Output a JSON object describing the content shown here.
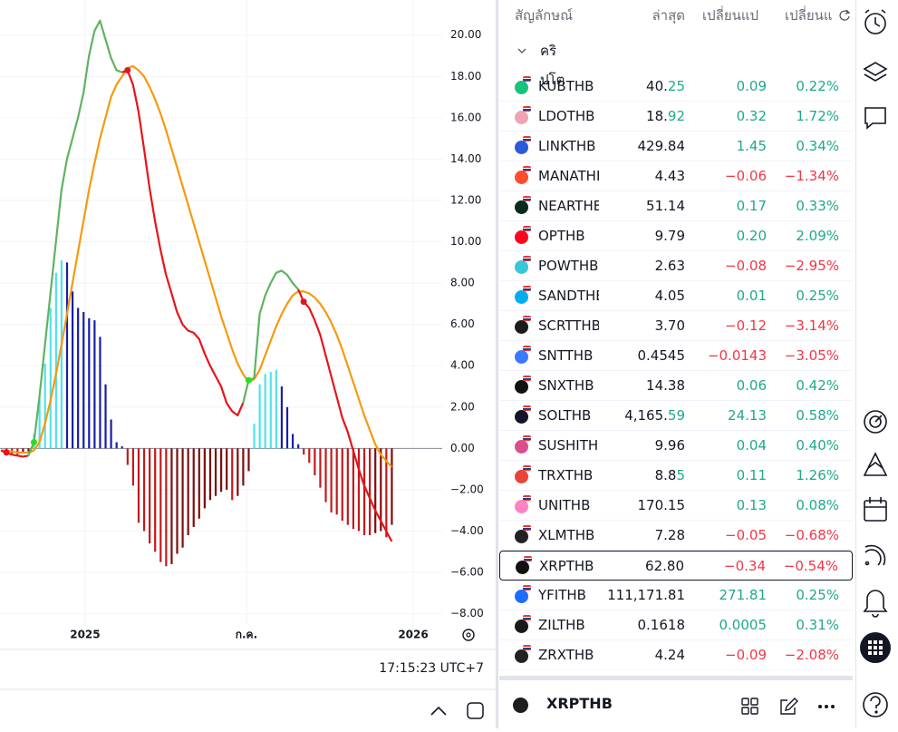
{
  "chart_data": {
    "type": "macd",
    "ylim": [
      -8.5,
      21.7
    ],
    "yticks": [
      {
        "value": -8,
        "label": "−8.00"
      },
      {
        "value": -6,
        "label": "−6.00"
      },
      {
        "value": -4,
        "label": "−4.00"
      },
      {
        "value": -2,
        "label": "−2.00"
      },
      {
        "value": 0,
        "label": "0.00"
      },
      {
        "value": 2,
        "label": "2.00"
      },
      {
        "value": 4,
        "label": "4.00"
      },
      {
        "value": 6,
        "label": "6.00"
      },
      {
        "value": 8,
        "label": "8.00"
      },
      {
        "value": 10,
        "label": "10.00"
      },
      {
        "value": 12,
        "label": "12.00"
      },
      {
        "value": 14,
        "label": "14.00"
      },
      {
        "value": 16,
        "label": "16.00"
      },
      {
        "value": 18,
        "label": "18.00"
      },
      {
        "value": 20,
        "label": "20.00"
      }
    ],
    "xlim": [
      0,
      80
    ],
    "xticks": [
      {
        "value": 15.3,
        "label": "2025"
      },
      {
        "value": 44.6,
        "label": "ก.ค."
      },
      {
        "value": 74.9,
        "label": "2026"
      }
    ],
    "grid": true,
    "macd": [
      -0.1,
      -0.2,
      -0.3,
      -0.35,
      -0.4,
      -0.35,
      0.3,
      2.5,
      5.0,
      7.5,
      10.0,
      12.5,
      14.0,
      15.0,
      16.0,
      17.2,
      19.0,
      20.2,
      20.7,
      19.8,
      18.9,
      18.3,
      18.2,
      18.3,
      17.6,
      16.3,
      14.5,
      12.6,
      11.0,
      9.6,
      8.4,
      7.5,
      6.6,
      6.0,
      5.7,
      5.6,
      5.3,
      4.6,
      4.0,
      3.5,
      3.0,
      2.2,
      1.8,
      1.6,
      2.2,
      3.3,
      3.4,
      6.5,
      7.4,
      8.0,
      8.5,
      8.6,
      8.4,
      8.0,
      7.7,
      7.1,
      6.8,
      6.2,
      5.5,
      4.5,
      3.5,
      2.5,
      1.5,
      0.8,
      -0.1,
      -1.0,
      -1.8,
      -2.4,
      -3.0,
      -3.5,
      -4.0,
      -4.5
    ],
    "signal": [
      -0.1,
      -0.1,
      -0.15,
      -0.2,
      -0.2,
      -0.2,
      -0.1,
      0.3,
      1.2,
      2.3,
      3.6,
      5.0,
      6.5,
      8.0,
      9.5,
      11.0,
      12.5,
      13.8,
      15.0,
      16.0,
      17.0,
      17.6,
      18.0,
      18.4,
      18.5,
      18.3,
      18.0,
      17.5,
      16.9,
      16.2,
      15.4,
      14.5,
      13.6,
      12.7,
      11.8,
      10.9,
      10.0,
      9.1,
      8.2,
      7.3,
      6.4,
      5.6,
      4.8,
      4.1,
      3.6,
      3.2,
      3.35,
      3.8,
      4.5,
      5.2,
      5.9,
      6.5,
      7.0,
      7.4,
      7.6,
      7.6,
      7.5,
      7.3,
      7.0,
      6.6,
      6.1,
      5.5,
      4.8,
      4.0,
      3.2,
      2.4,
      1.6,
      0.9,
      0.2,
      -0.3,
      -0.6,
      -0.9
    ],
    "histogram": [
      null,
      -0.2,
      -0.25,
      -0.3,
      -0.25,
      -0.15,
      0.7,
      2.4,
      4.1,
      6.8,
      8.5,
      9.1,
      9.0,
      7.6,
      6.8,
      6.6,
      6.3,
      6.2,
      5.4,
      3.1,
      1.4,
      0.3,
      0.1,
      -0.8,
      -1.8,
      -3.6,
      -4.0,
      -4.6,
      -5.0,
      -5.5,
      -5.7,
      -5.6,
      -5.1,
      -4.8,
      -4.2,
      -3.8,
      -3.4,
      -2.9,
      -2.5,
      -2.3,
      -2.1,
      -2.0,
      -2.5,
      -2.3,
      -1.8,
      -1.1,
      1.2,
      3.1,
      3.6,
      3.7,
      3.8,
      3.0,
      2.0,
      0.7,
      0.2,
      -0.3,
      -0.7,
      -1.3,
      -1.9,
      -2.6,
      -3.1,
      -3.2,
      -3.5,
      -3.7,
      -3.9,
      -4.0,
      -4.2,
      -4.2,
      -4.1,
      -4.0,
      -4.3,
      -3.7
    ],
    "colors": {
      "macd_up": "#5fb361",
      "macd_down": "#e5151b",
      "signal": "#f59a0c",
      "hist_up_rise": "#4fe3ec",
      "hist_up_fall": "#1a1fa6",
      "hist_down_fall": "#c4191c",
      "hist_down_rise": "#7d0e0e"
    },
    "time": "17:15:23 UTC+7"
  },
  "watchlist": {
    "headers": [
      "สัญลักษณ์",
      "ล่าสุด",
      "เปลี่ยนแป",
      "เปลี่ยนแ"
    ],
    "section": "คริปโต",
    "rows": [
      {
        "symbol": "KUBTHB",
        "last": "40.",
        "last_tick": "25",
        "change": "0.09",
        "change_pct": "0.22%"
      },
      {
        "symbol": "LDOTHB",
        "last": "18.",
        "last_tick": "92",
        "change": "0.32",
        "change_pct": "1.72%"
      },
      {
        "symbol": "LINKTHB",
        "last": "429.84",
        "change": "1.45",
        "change_pct": "0.34%"
      },
      {
        "symbol": "MANATHB",
        "last": "4.43",
        "change": "−0.06",
        "change_pct": "−1.34%"
      },
      {
        "symbol": "NEARTHB",
        "last": "51.14",
        "change": "0.17",
        "change_pct": "0.33%"
      },
      {
        "symbol": "OPTHB",
        "last": "9.79",
        "change": "0.20",
        "change_pct": "2.09%"
      },
      {
        "symbol": "POWTHB",
        "last": "2.63",
        "change": "−0.08",
        "change_pct": "−2.95%"
      },
      {
        "symbol": "SANDTHB",
        "last": "4.05",
        "change": "0.01",
        "change_pct": "0.25%"
      },
      {
        "symbol": "SCRTTHB",
        "last": "3.70",
        "change": "−0.12",
        "change_pct": "−3.14%"
      },
      {
        "symbol": "SNTTHB",
        "last": "0.4545",
        "change": "−0.0143",
        "change_pct": "−3.05%"
      },
      {
        "symbol": "SNXTHB",
        "last": "14.38",
        "change": "0.06",
        "change_pct": "0.42%"
      },
      {
        "symbol": "SOLTHB",
        "last": "4,165.",
        "last_tick": "59",
        "change": "24.13",
        "change_pct": "0.58%"
      },
      {
        "symbol": "SUSHITHB",
        "last": "9.96",
        "change": "0.04",
        "change_pct": "0.40%"
      },
      {
        "symbol": "TRXTHB",
        "last": "8.8",
        "last_tick": "5",
        "change": "0.11",
        "change_pct": "1.26%"
      },
      {
        "symbol": "UNITHB",
        "last": "170.15",
        "change": "0.13",
        "change_pct": "0.08%"
      },
      {
        "symbol": "XLMTHB",
        "last": "7.28",
        "change": "−0.05",
        "change_pct": "−0.68%"
      },
      {
        "symbol": "XRPTHB",
        "last": "62.80",
        "change": "−0.34",
        "change_pct": "−0.54%",
        "selected": true
      },
      {
        "symbol": "YFITHB",
        "last": "111,171.81",
        "change": "271.81",
        "change_pct": "0.25%"
      },
      {
        "symbol": "ZILTHB",
        "last": "0.1618",
        "change": "0.0005",
        "change_pct": "0.31%"
      },
      {
        "symbol": "ZRXTHB",
        "last": "4.24",
        "change": "−0.09",
        "change_pct": "−2.08%"
      }
    ]
  },
  "details": {
    "symbol": "XRPTHB"
  }
}
